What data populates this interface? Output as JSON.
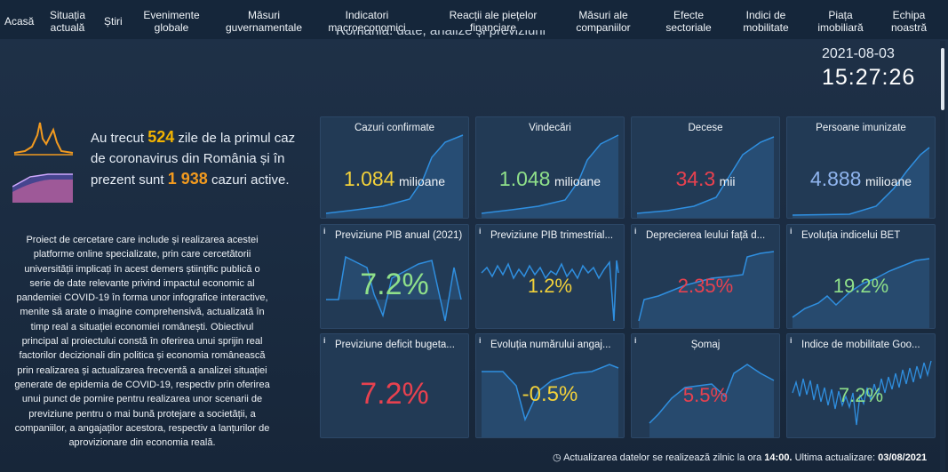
{
  "nav": [
    {
      "label": "Acasă"
    },
    {
      "label": "Situația actuală"
    },
    {
      "label": "Știri"
    },
    {
      "label": "Evenimente globale"
    },
    {
      "label": "Măsuri guvernamentale"
    },
    {
      "label": "Indicatori macroeconomici"
    },
    {
      "label": "Reacții ale piețelor financiare"
    },
    {
      "label": "Măsuri ale companiilor"
    },
    {
      "label": "Efecte sectoriale"
    },
    {
      "label": "Indici de mobilitate"
    },
    {
      "label": "Piața imobiliară"
    },
    {
      "label": "Echipa noastră"
    }
  ],
  "page_subtitle": "România: date, analize și previziuni",
  "clock": {
    "date": "2021-08-03",
    "time": "15:27:26"
  },
  "hero": {
    "prefix": "Au trecut",
    "days": "524",
    "mid": "zile de la primul caz de coronavirus din România și în prezent sunt",
    "active": "1 938",
    "suffix": "cazuri active."
  },
  "description": "Proiect de cercetare care include și realizarea acestei platforme online specializate, prin care cercetătorii universității implicați în acest demers științific publică o serie de date relevante privind impactul economic al pandemiei COVID-19 în forma unor infografice interactive, menite să arate o imagine comprehensivă, actualizată în timp real a situației economiei românești. Obiectivul principal al proiectului constă în oferirea unui sprijin real factorilor decizionali din politica și economia românească prin realizarea și actualizarea frecventă a analizei situației generate de epidemia de COVID-19, respectiv prin oferirea unui punct de pornire pentru realizarea unor scenarii de previziune pentru o mai bună protejare a societății, a companiilor, a angajaților acestora, respectiv a lanțurilor de aprovizionare din economia reală.",
  "colors": {
    "yellow": "#f2d13a",
    "green": "#8fe08a",
    "red": "#e8414f",
    "blue": "#8fb4ee",
    "accent": "#f2b300",
    "line": "#2f8fe0"
  },
  "cards_row1": [
    {
      "title": "Cazuri confirmate",
      "value": "1.084",
      "unit": "milioane",
      "color": "yellow"
    },
    {
      "title": "Vindecări",
      "value": "1.048",
      "unit": "milioane",
      "color": "green"
    },
    {
      "title": "Decese",
      "value": "34.3",
      "unit": "mii",
      "color": "red"
    },
    {
      "title": "Persoane imunizate",
      "value": "4.888",
      "unit": "milioane",
      "color": "blue"
    }
  ],
  "cards_row2": [
    {
      "title": "Previziune PIB anual (2021)",
      "info": "i",
      "value": "7.2%",
      "color": "green"
    },
    {
      "title": "Previziune PIB trimestrial...",
      "info": "i",
      "value": "1.2%",
      "color": "yellow"
    },
    {
      "title": "Deprecierea leului față d...",
      "info": "i",
      "value": "2.35%",
      "color": "red"
    },
    {
      "title": "Evoluția indicelui BET",
      "info": "i",
      "value": "19.2%",
      "color": "green"
    }
  ],
  "cards_row3": [
    {
      "title": "Previziune deficit bugeta...",
      "info": "i",
      "value": "7.2%",
      "color": "red"
    },
    {
      "title": "Evoluția numărului angaj...",
      "info": "i",
      "value": "-0.5%",
      "color": "yellow"
    },
    {
      "title": "Șomaj",
      "info": "i",
      "value": "5.5%",
      "color": "red"
    },
    {
      "title": "Indice de mobilitate Goo...",
      "info": "i",
      "value": "7.2%",
      "color": "green"
    }
  ],
  "footer": {
    "icon": "clock-icon",
    "text1": "Actualizarea datelor se realizează zilnic la ora",
    "hour": "14:00.",
    "text2": "Ultima actualizare:",
    "date": "03/08/2021"
  }
}
